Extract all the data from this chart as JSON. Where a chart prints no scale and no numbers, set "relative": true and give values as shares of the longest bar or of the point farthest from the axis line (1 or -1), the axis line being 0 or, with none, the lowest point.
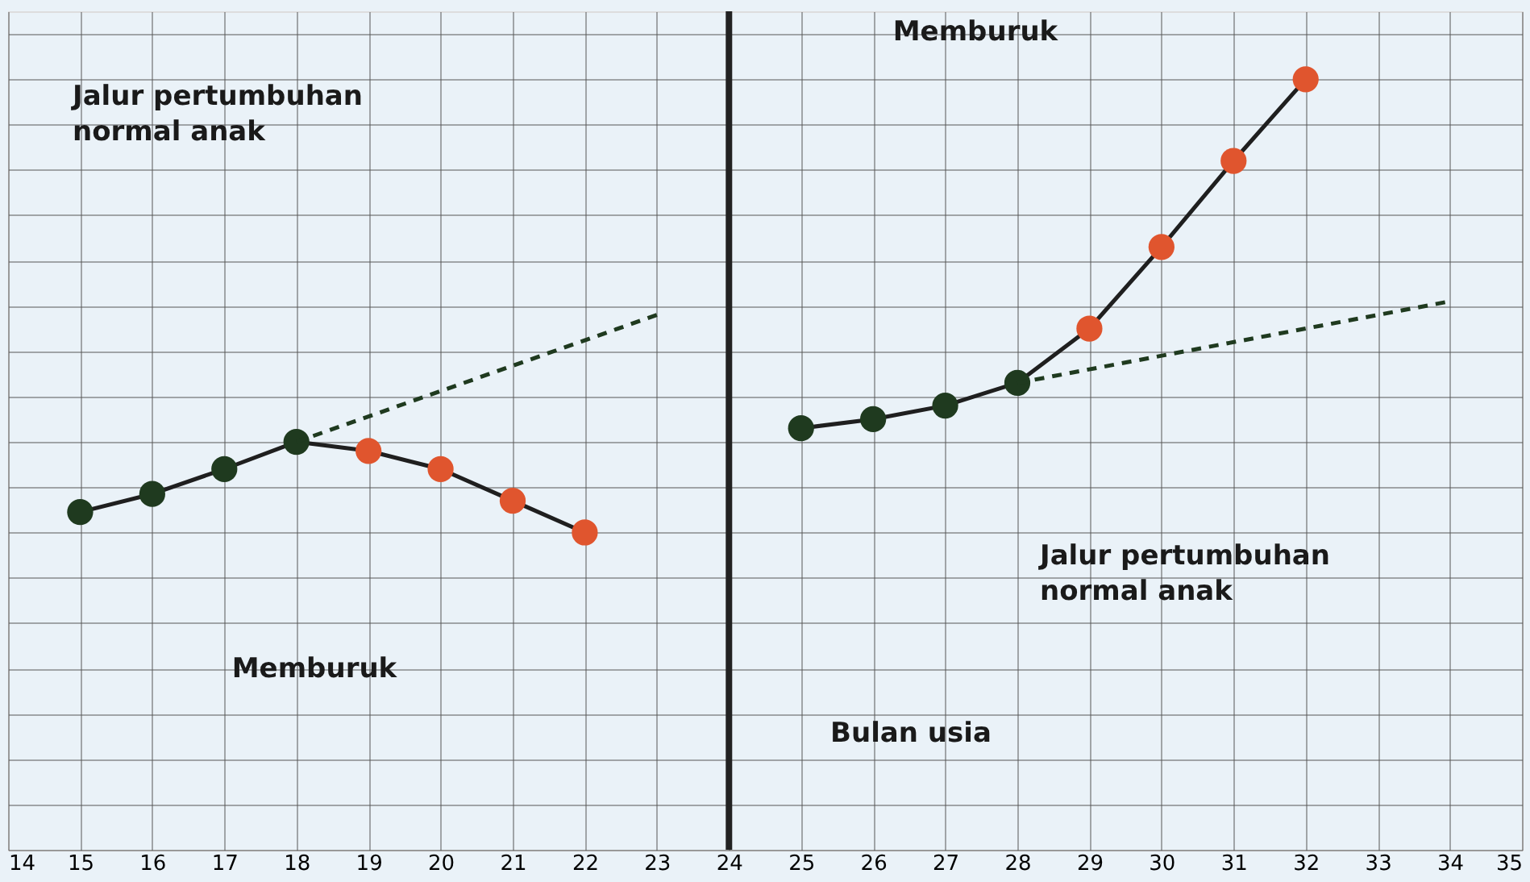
{
  "chart_data": {
    "type": "line",
    "relative": true,
    "series": [
      {
        "x": [
          15,
          16,
          17,
          18,
          19,
          20,
          21,
          22
        ],
        "values": [
          0.045,
          0.085,
          0.14,
          0.2,
          0.18,
          0.14,
          0.07,
          0
        ],
        "color": "#1f1f1f",
        "colors": [
          "#1f3a1f",
          "#1f3a1f",
          "#1f3a1f",
          "#1f3a1f",
          "#e0552e",
          "#e0552e",
          "#e0552e",
          "#e0552e"
        ]
      },
      {
        "x": [
          25,
          26,
          27,
          28,
          29,
          30,
          31,
          32
        ],
        "values": [
          0.23,
          0.25,
          0.28,
          0.33,
          0.45,
          0.63,
          0.82,
          1
        ],
        "color": "#1f1f1f",
        "colors": [
          "#1f3a1f",
          "#1f3a1f",
          "#1f3a1f",
          "#1f3a1f",
          "#e0552e",
          "#e0552e",
          "#e0552e",
          "#e0552e"
        ]
      },
      {
        "type": "line",
        "x": [
          18,
          23
        ],
        "values": [
          0.2,
          0.48
        ],
        "color": "#1f3a1f",
        "line_style": "dashed",
        "marker": "none"
      },
      {
        "type": "line",
        "x": [
          28,
          34
        ],
        "values": [
          0.33,
          0.51
        ],
        "color": "#1f3a1f",
        "line_style": "dashed",
        "marker": "none"
      }
    ],
    "xlim": [
      14,
      35
    ],
    "xticks": [
      14,
      15,
      16,
      17,
      18,
      19,
      20,
      21,
      22,
      23,
      24,
      25,
      26,
      27,
      28,
      29,
      30,
      31,
      32,
      33,
      34,
      35
    ],
    "tick_labels": "x",
    "grid": true,
    "marker": "circle",
    "line_style": "solid",
    "ref_lines": [
      {
        "axis": "x",
        "value": 24,
        "color": "#222222"
      }
    ],
    "annotations": [
      "Jalur pertumbuhan normal anak",
      "Memburuk",
      "Memburuk",
      "Jalur pertumbuhan normal anak",
      "Bulan usia"
    ]
  }
}
